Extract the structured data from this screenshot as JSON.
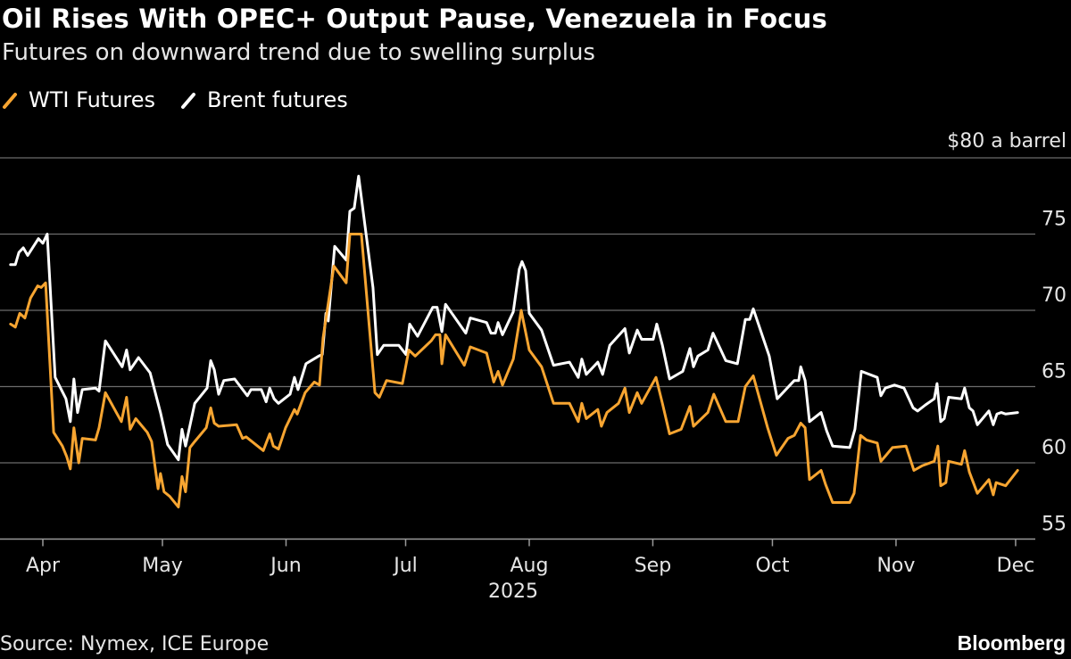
{
  "chart_data": {
    "type": "line",
    "title": "Oil Rises With OPEC+ Output Pause, Venezuela in Focus",
    "subtitle": "Futures on downward trend due to swelling surplus",
    "ylabel": "$80 a barrel",
    "ylim": [
      55,
      80
    ],
    "yticks": [
      {
        "value": 80,
        "label": "$80 a barrel"
      },
      {
        "value": 75,
        "label": "75"
      },
      {
        "value": 70,
        "label": "70"
      },
      {
        "value": 65,
        "label": "65"
      },
      {
        "value": 60,
        "label": "60"
      },
      {
        "value": 55,
        "label": "55"
      }
    ],
    "xticks": [
      {
        "day": 0,
        "label": "Apr"
      },
      {
        "day": 30,
        "label": "May"
      },
      {
        "day": 61,
        "label": "Jun"
      },
      {
        "day": 91,
        "label": "Jul"
      },
      {
        "day": 122,
        "label": "Aug"
      },
      {
        "day": 153,
        "label": "Sep"
      },
      {
        "day": 183,
        "label": "Oct"
      },
      {
        "day": 214,
        "label": "Nov"
      },
      {
        "day": 244,
        "label": "Dec"
      }
    ],
    "xlabel": "2025",
    "grid": true,
    "legend_position": "top-left",
    "series": [
      {
        "name": "WTI Futures",
        "color": "#f7a531",
        "points": [
          [
            -8.1,
            69.1
          ],
          [
            -6.9,
            68.9
          ],
          [
            -5.8,
            69.8
          ],
          [
            -4.5,
            69.5
          ],
          [
            -3.1,
            70.8
          ],
          [
            -1.3,
            71.6
          ],
          [
            -0.4,
            71.5
          ],
          [
            0.7,
            71.8
          ],
          [
            2.7,
            62.0
          ],
          [
            4.9,
            61.1
          ],
          [
            6.0,
            60.4
          ],
          [
            6.9,
            59.6
          ],
          [
            7.8,
            62.3
          ],
          [
            9.0,
            60.0
          ],
          [
            9.9,
            61.6
          ],
          [
            13.2,
            61.5
          ],
          [
            14.1,
            62.3
          ],
          [
            15.7,
            64.6
          ],
          [
            19.7,
            62.7
          ],
          [
            21.0,
            64.3
          ],
          [
            21.9,
            62.2
          ],
          [
            23.3,
            62.9
          ],
          [
            26.2,
            62.0
          ],
          [
            27.3,
            61.4
          ],
          [
            28.9,
            58.3
          ],
          [
            29.5,
            59.3
          ],
          [
            30.4,
            58.1
          ],
          [
            31.8,
            57.8
          ],
          [
            34.0,
            57.1
          ],
          [
            34.9,
            59.1
          ],
          [
            35.8,
            58.1
          ],
          [
            36.9,
            61.0
          ],
          [
            38.1,
            61.4
          ],
          [
            41.0,
            62.3
          ],
          [
            42.1,
            63.6
          ],
          [
            43.0,
            62.6
          ],
          [
            44.1,
            62.4
          ],
          [
            48.6,
            62.5
          ],
          [
            50.1,
            61.6
          ],
          [
            51.0,
            61.7
          ],
          [
            55.3,
            60.8
          ],
          [
            56.9,
            61.9
          ],
          [
            57.8,
            61.1
          ],
          [
            59.1,
            60.9
          ],
          [
            60.9,
            62.3
          ],
          [
            63.1,
            63.5
          ],
          [
            63.8,
            63.2
          ],
          [
            65.8,
            64.6
          ],
          [
            68.1,
            65.3
          ],
          [
            69.4,
            65.1
          ],
          [
            70.3,
            68.2
          ],
          [
            73.0,
            72.9
          ],
          [
            76.1,
            71.8
          ],
          [
            77.0,
            75.0
          ],
          [
            79.9,
            75.0
          ],
          [
            83.3,
            64.6
          ],
          [
            84.4,
            64.3
          ],
          [
            86.2,
            65.4
          ],
          [
            90.2,
            65.2
          ],
          [
            91.8,
            67.4
          ],
          [
            93.4,
            67.0
          ],
          [
            97.4,
            68.0
          ],
          [
            98.5,
            68.4
          ],
          [
            99.6,
            68.4
          ],
          [
            100.1,
            66.5
          ],
          [
            101.0,
            68.4
          ],
          [
            105.7,
            66.4
          ],
          [
            107.2,
            67.6
          ],
          [
            111.3,
            67.2
          ],
          [
            113.1,
            65.3
          ],
          [
            114.2,
            66.0
          ],
          [
            115.3,
            65.1
          ],
          [
            118.0,
            66.8
          ],
          [
            120.0,
            70.0
          ],
          [
            122.0,
            67.4
          ],
          [
            125.1,
            66.3
          ],
          [
            128.1,
            63.9
          ],
          [
            132.1,
            63.9
          ],
          [
            134.3,
            62.7
          ],
          [
            135.2,
            63.9
          ],
          [
            136.3,
            62.9
          ],
          [
            139.2,
            63.5
          ],
          [
            140.1,
            62.4
          ],
          [
            141.5,
            63.3
          ],
          [
            144.4,
            63.9
          ],
          [
            146.0,
            64.9
          ],
          [
            147.1,
            63.3
          ],
          [
            149.1,
            64.6
          ],
          [
            150.2,
            63.9
          ],
          [
            153.8,
            65.6
          ],
          [
            155.4,
            63.9
          ],
          [
            157.2,
            61.9
          ],
          [
            160.1,
            62.2
          ],
          [
            162.3,
            63.7
          ],
          [
            163.2,
            62.4
          ],
          [
            166.8,
            63.3
          ],
          [
            168.3,
            64.5
          ],
          [
            171.3,
            62.7
          ],
          [
            174.4,
            62.7
          ],
          [
            176.2,
            65.0
          ],
          [
            178.2,
            65.7
          ],
          [
            181.8,
            62.3
          ],
          [
            184.0,
            60.5
          ],
          [
            186.9,
            61.6
          ],
          [
            188.5,
            61.8
          ],
          [
            190.1,
            62.6
          ],
          [
            191.2,
            62.3
          ],
          [
            192.3,
            58.9
          ],
          [
            195.2,
            59.5
          ],
          [
            196.3,
            58.6
          ],
          [
            198.1,
            57.4
          ],
          [
            202.4,
            57.4
          ],
          [
            203.5,
            58.0
          ],
          [
            205.1,
            61.8
          ],
          [
            206.6,
            61.5
          ],
          [
            209.3,
            61.3
          ],
          [
            210.2,
            60.1
          ],
          [
            211.5,
            60.5
          ],
          [
            213.1,
            61.0
          ],
          [
            216.5,
            61.1
          ],
          [
            218.5,
            59.5
          ],
          [
            220.5,
            59.8
          ],
          [
            223.6,
            60.1
          ],
          [
            224.5,
            61.1
          ],
          [
            225.2,
            58.5
          ],
          [
            226.5,
            58.7
          ],
          [
            227.2,
            60.1
          ],
          [
            230.4,
            59.9
          ],
          [
            231.2,
            60.8
          ],
          [
            232.4,
            59.4
          ],
          [
            234.4,
            58.0
          ],
          [
            237.3,
            58.9
          ],
          [
            238.4,
            57.9
          ],
          [
            239.1,
            58.7
          ],
          [
            241.5,
            58.5
          ],
          [
            244.5,
            59.5
          ]
        ]
      },
      {
        "name": "Brent futures",
        "color": "#ffffff",
        "points": [
          [
            -8.1,
            73.0
          ],
          [
            -6.9,
            73.0
          ],
          [
            -6.0,
            73.8
          ],
          [
            -4.9,
            74.1
          ],
          [
            -3.8,
            73.6
          ],
          [
            -1.1,
            74.7
          ],
          [
            0,
            74.4
          ],
          [
            1.1,
            75.0
          ],
          [
            3.1,
            65.6
          ],
          [
            5.8,
            64.2
          ],
          [
            6.9,
            62.7
          ],
          [
            7.8,
            65.5
          ],
          [
            8.7,
            63.3
          ],
          [
            9.9,
            64.8
          ],
          [
            13.2,
            64.9
          ],
          [
            14.1,
            64.7
          ],
          [
            15.7,
            68.0
          ],
          [
            19.9,
            66.3
          ],
          [
            21.0,
            67.4
          ],
          [
            21.9,
            66.1
          ],
          [
            24.0,
            66.9
          ],
          [
            26.9,
            65.9
          ],
          [
            29.5,
            63.3
          ],
          [
            31.3,
            61.2
          ],
          [
            34.0,
            60.2
          ],
          [
            34.9,
            62.2
          ],
          [
            35.8,
            61.1
          ],
          [
            38.1,
            63.9
          ],
          [
            41.2,
            64.9
          ],
          [
            42.1,
            66.7
          ],
          [
            43.0,
            66.1
          ],
          [
            44.1,
            64.5
          ],
          [
            45.4,
            65.4
          ],
          [
            48.1,
            65.5
          ],
          [
            51.3,
            64.4
          ],
          [
            52.2,
            64.8
          ],
          [
            54.8,
            64.8
          ],
          [
            56.0,
            64.0
          ],
          [
            56.9,
            64.9
          ],
          [
            58.0,
            64.2
          ],
          [
            59.1,
            63.9
          ],
          [
            62.0,
            64.5
          ],
          [
            63.1,
            65.6
          ],
          [
            64.0,
            64.8
          ],
          [
            66.0,
            66.5
          ],
          [
            69.2,
            67.0
          ],
          [
            70.1,
            67.1
          ],
          [
            71.0,
            69.8
          ],
          [
            71.6,
            69.3
          ],
          [
            73.2,
            74.2
          ],
          [
            76.1,
            73.3
          ],
          [
            77.0,
            76.5
          ],
          [
            78.1,
            76.7
          ],
          [
            79.2,
            78.8
          ],
          [
            82.8,
            71.5
          ],
          [
            83.9,
            67.1
          ],
          [
            85.5,
            67.7
          ],
          [
            89.3,
            67.7
          ],
          [
            91.1,
            67.1
          ],
          [
            92.0,
            69.1
          ],
          [
            94.0,
            68.3
          ],
          [
            97.8,
            70.2
          ],
          [
            98.9,
            70.2
          ],
          [
            100.1,
            68.6
          ],
          [
            101.0,
            70.4
          ],
          [
            106.1,
            68.5
          ],
          [
            107.2,
            69.5
          ],
          [
            111.3,
            69.2
          ],
          [
            112.4,
            68.5
          ],
          [
            113.5,
            68.5
          ],
          [
            114.2,
            69.2
          ],
          [
            115.3,
            68.4
          ],
          [
            118.0,
            69.9
          ],
          [
            119.5,
            72.7
          ],
          [
            120.2,
            73.2
          ],
          [
            121.1,
            72.6
          ],
          [
            122.0,
            69.8
          ],
          [
            125.1,
            68.7
          ],
          [
            128.1,
            66.4
          ],
          [
            132.1,
            66.6
          ],
          [
            134.3,
            65.6
          ],
          [
            135.2,
            66.8
          ],
          [
            136.3,
            65.8
          ],
          [
            139.2,
            66.6
          ],
          [
            140.4,
            65.8
          ],
          [
            142.2,
            67.7
          ],
          [
            146.0,
            68.8
          ],
          [
            147.1,
            67.2
          ],
          [
            149.1,
            68.7
          ],
          [
            150.2,
            68.1
          ],
          [
            153.1,
            68.1
          ],
          [
            154.0,
            69.1
          ],
          [
            155.4,
            67.7
          ],
          [
            157.2,
            65.5
          ],
          [
            160.5,
            66.0
          ],
          [
            162.3,
            67.5
          ],
          [
            163.2,
            66.3
          ],
          [
            164.3,
            67.0
          ],
          [
            166.8,
            67.4
          ],
          [
            168.1,
            68.5
          ],
          [
            171.3,
            66.7
          ],
          [
            174.2,
            66.5
          ],
          [
            176.2,
            69.4
          ],
          [
            177.3,
            69.4
          ],
          [
            178.2,
            70.1
          ],
          [
            182.2,
            67.0
          ],
          [
            184.2,
            64.2
          ],
          [
            188.5,
            65.4
          ],
          [
            189.6,
            65.4
          ],
          [
            190.1,
            66.3
          ],
          [
            191.2,
            65.4
          ],
          [
            192.3,
            62.7
          ],
          [
            195.2,
            63.3
          ],
          [
            196.6,
            62.1
          ],
          [
            198.1,
            61.1
          ],
          [
            202.4,
            61.0
          ],
          [
            203.7,
            62.2
          ],
          [
            205.3,
            66.0
          ],
          [
            209.3,
            65.6
          ],
          [
            210.2,
            64.4
          ],
          [
            211.3,
            64.9
          ],
          [
            213.6,
            65.1
          ],
          [
            216.0,
            64.9
          ],
          [
            218.3,
            63.6
          ],
          [
            219.4,
            63.4
          ],
          [
            221.4,
            63.8
          ],
          [
            223.6,
            64.2
          ],
          [
            224.3,
            65.2
          ],
          [
            225.2,
            62.7
          ],
          [
            226.1,
            62.9
          ],
          [
            227.2,
            64.3
          ],
          [
            230.4,
            64.2
          ],
          [
            231.2,
            64.9
          ],
          [
            232.4,
            63.6
          ],
          [
            233.3,
            63.4
          ],
          [
            234.4,
            62.5
          ],
          [
            237.3,
            63.4
          ],
          [
            238.4,
            62.5
          ],
          [
            239.3,
            63.2
          ],
          [
            240.4,
            63.3
          ],
          [
            241.5,
            63.2
          ],
          [
            244.5,
            63.3
          ]
        ]
      }
    ]
  },
  "footer": {
    "source": "Source: Nymex, ICE Europe",
    "brand": "Bloomberg"
  }
}
